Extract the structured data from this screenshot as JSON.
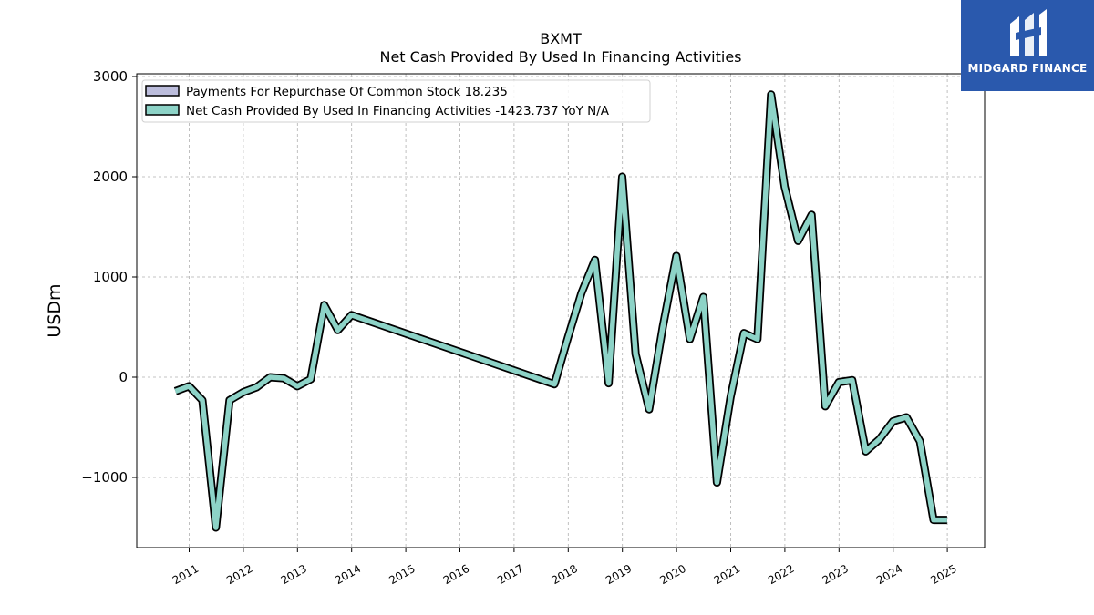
{
  "chart_data": {
    "type": "line",
    "title": "BXMT",
    "subtitle": "Net Cash Provided By Used In Financing Activities",
    "ylabel": "USDm",
    "xlabel": "",
    "ylim": [
      -1700,
      3000
    ],
    "xlim": [
      2010.45,
      2025.7
    ],
    "yticks": [
      -1000,
      0,
      1000,
      2000,
      3000
    ],
    "ytick_labels": [
      "−1000",
      "0",
      "1000",
      "2000",
      "3000"
    ],
    "xticks": [
      2011,
      2012,
      2013,
      2014,
      2015,
      2016,
      2017,
      2018,
      2019,
      2020,
      2021,
      2022,
      2023,
      2024,
      2025
    ],
    "xtick_labels": [
      "2011",
      "2012",
      "2013",
      "2014",
      "2015",
      "2016",
      "2017",
      "2018",
      "2019",
      "2020",
      "2021",
      "2022",
      "2023",
      "2024",
      "2025"
    ],
    "grid": true,
    "legend_position": "top-left",
    "legend": [
      {
        "label": "Payments For Repurchase Of Common Stock  18.235",
        "color": "#bcbddc"
      },
      {
        "label": "Net Cash Provided By Used In Financing Activities  -1423.737 YoY N/A",
        "color": "#8dd3c7"
      }
    ],
    "series": [
      {
        "name": "Net Cash Provided By Used In Financing Activities",
        "color": "#8dd3c7",
        "points": [
          [
            "2010-09-30",
            -140
          ],
          [
            "2010-12-31",
            -90
          ],
          [
            "2011-03-31",
            -230
          ],
          [
            "2011-06-30",
            -1500
          ],
          [
            "2011-09-30",
            -230
          ],
          [
            "2011-12-31",
            -150
          ],
          [
            "2012-03-31",
            -100
          ],
          [
            "2012-06-30",
            0
          ],
          [
            "2012-09-30",
            -10
          ],
          [
            "2012-12-31",
            -90
          ],
          [
            "2013-03-31",
            -20
          ],
          [
            "2013-06-30",
            720
          ],
          [
            "2013-09-30",
            470
          ],
          [
            "2013-12-31",
            620
          ],
          [
            "2017-09-30",
            -70
          ],
          [
            "2017-12-31",
            400
          ],
          [
            "2018-03-31",
            840
          ],
          [
            "2018-06-30",
            1170
          ],
          [
            "2018-09-30",
            -60
          ],
          [
            "2018-12-31",
            2000
          ],
          [
            "2019-03-31",
            230
          ],
          [
            "2019-06-30",
            -320
          ],
          [
            "2019-09-30",
            500
          ],
          [
            "2019-12-31",
            1210
          ],
          [
            "2020-03-31",
            380
          ],
          [
            "2020-06-30",
            800
          ],
          [
            "2020-09-30",
            -1050
          ],
          [
            "2020-12-31",
            -200
          ],
          [
            "2021-03-31",
            440
          ],
          [
            "2021-06-30",
            380
          ],
          [
            "2021-09-30",
            2820
          ],
          [
            "2021-12-31",
            1900
          ],
          [
            "2022-03-31",
            1360
          ],
          [
            "2022-06-30",
            1620
          ],
          [
            "2022-09-30",
            -290
          ],
          [
            "2022-12-31",
            -50
          ],
          [
            "2023-03-31",
            -30
          ],
          [
            "2023-06-30",
            -740
          ],
          [
            "2023-09-30",
            -620
          ],
          [
            "2023-12-31",
            -440
          ],
          [
            "2024-03-31",
            -400
          ],
          [
            "2024-06-30",
            -640
          ],
          [
            "2024-09-30",
            -1424
          ],
          [
            "2024-12-31",
            -1424
          ]
        ]
      }
    ]
  },
  "logo": {
    "text": "MIDGARD FINANCE",
    "bg_color": "#2a59ad"
  }
}
